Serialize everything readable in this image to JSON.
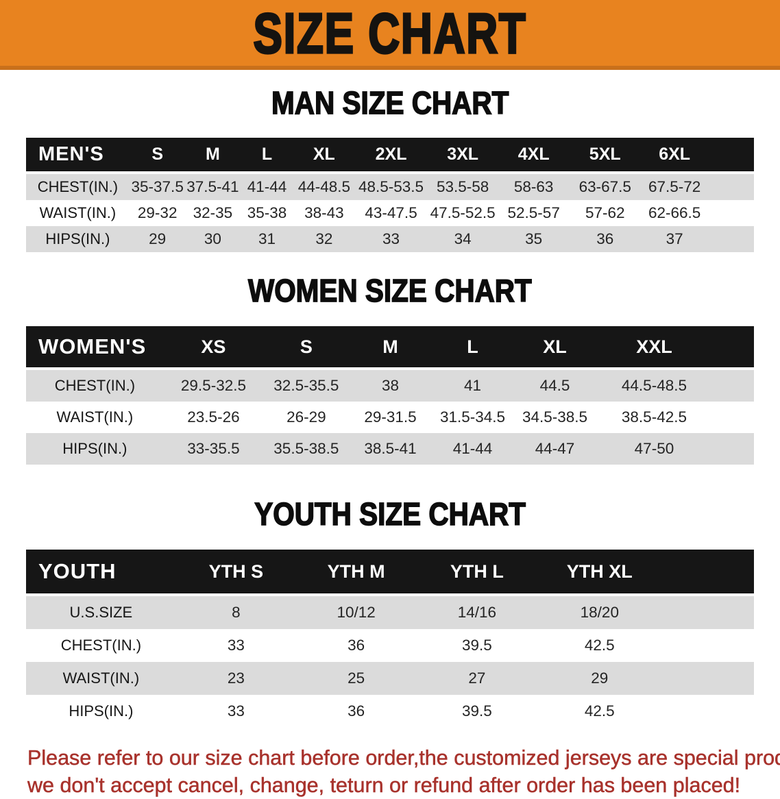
{
  "banner": {
    "title": "SIZE CHART"
  },
  "colors": {
    "banner_bg": "#E8831F",
    "banner_edge": "#C9701B",
    "table_header_bg": "#161616",
    "table_header_text": "#FFFFFF",
    "row_alt_gray": "#DBDBDB",
    "body_text": "#242424",
    "disclaimer_red": "#A8322C"
  },
  "sections": [
    {
      "heading": "MAN SIZE CHART",
      "corner": "MEN'S",
      "columns": [
        "S",
        "M",
        "L",
        "XL",
        "2XL",
        "3XL",
        "4XL",
        "5XL",
        "6XL"
      ],
      "rows": [
        {
          "label": "CHEST(IN.)",
          "values": [
            "35-37.5",
            "37.5-41",
            "41-44",
            "44-48.5",
            "48.5-53.5",
            "53.5-58",
            "58-63",
            "63-67.5",
            "67.5-72"
          ]
        },
        {
          "label": "WAIST(IN.)",
          "values": [
            "29-32",
            "32-35",
            "35-38",
            "38-43",
            "43-47.5",
            "47.5-52.5",
            "52.5-57",
            "57-62",
            "62-66.5"
          ]
        },
        {
          "label": "HIPS(IN.)",
          "values": [
            "29",
            "30",
            "31",
            "32",
            "33",
            "34",
            "35",
            "36",
            "37"
          ]
        }
      ]
    },
    {
      "heading": "WOMEN SIZE CHART",
      "corner": "WOMEN'S",
      "columns": [
        "XS",
        "S",
        "M",
        "L",
        "XL",
        "XXL"
      ],
      "rows": [
        {
          "label": "CHEST(IN.)",
          "values": [
            "29.5-32.5",
            "32.5-35.5",
            "38",
            "41",
            "44.5",
            "44.5-48.5"
          ]
        },
        {
          "label": "WAIST(IN.)",
          "values": [
            "23.5-26",
            "26-29",
            "29-31.5",
            "31.5-34.5",
            "34.5-38.5",
            "38.5-42.5"
          ]
        },
        {
          "label": "HIPS(IN.)",
          "values": [
            "33-35.5",
            "35.5-38.5",
            "38.5-41",
            "41-44",
            "44-47",
            "47-50"
          ]
        }
      ]
    },
    {
      "heading": "YOUTH SIZE CHART",
      "corner": "YOUTH",
      "columns": [
        "YTH S",
        "YTH M",
        "YTH L",
        "YTH XL"
      ],
      "rows": [
        {
          "label": "U.S.SIZE",
          "values": [
            "8",
            "10/12",
            "14/16",
            "18/20"
          ]
        },
        {
          "label": "CHEST(IN.)",
          "values": [
            "33",
            "36",
            "39.5",
            "42.5"
          ]
        },
        {
          "label": "WAIST(IN.)",
          "values": [
            "23",
            "25",
            "27",
            "29"
          ]
        },
        {
          "label": "HIPS(IN.)",
          "values": [
            "33",
            "36",
            "39.5",
            "42.5"
          ]
        }
      ]
    }
  ],
  "disclaimer": {
    "line1": "Please refer to our size chart before order,the customized jerseys are special products,",
    "line2": "we don't accept cancel, change, teturn or refund after order has been placed!"
  }
}
